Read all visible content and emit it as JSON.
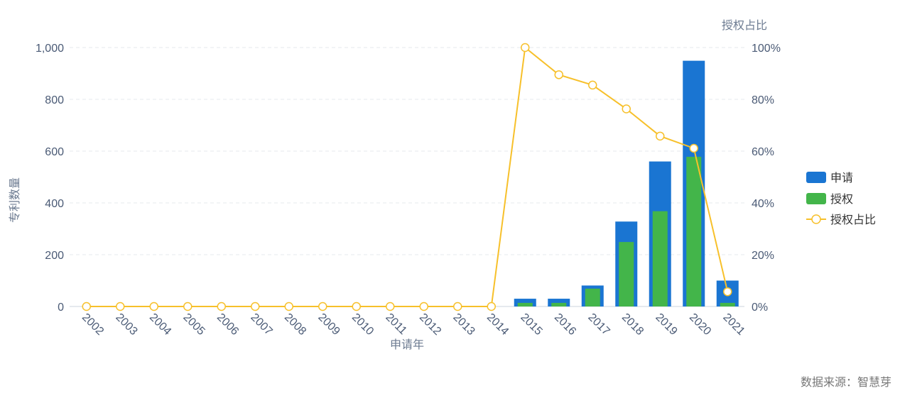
{
  "chart_data": {
    "type": "bar",
    "categories": [
      "2002",
      "2003",
      "2004",
      "2005",
      "2006",
      "2007",
      "2008",
      "2009",
      "2010",
      "2011",
      "2012",
      "2013",
      "2014",
      "2015",
      "2016",
      "2017",
      "2018",
      "2019",
      "2020",
      "2021"
    ],
    "series": [
      {
        "name": "申请",
        "type": "bar",
        "axis": "left",
        "color": "#1a75d2",
        "values": [
          0,
          0,
          0,
          0,
          0,
          0,
          0,
          0,
          0,
          0,
          0,
          0,
          0,
          30,
          30,
          81,
          328,
          560,
          949,
          100
        ]
      },
      {
        "name": "授权",
        "type": "bar",
        "axis": "left",
        "color": "#43b54a",
        "values": [
          0,
          0,
          0,
          0,
          0,
          0,
          0,
          0,
          0,
          0,
          0,
          0,
          0,
          14,
          14,
          69,
          249,
          368,
          578,
          14
        ]
      },
      {
        "name": "授权占比",
        "type": "line",
        "axis": "right",
        "color": "#f7c02a",
        "values": [
          0,
          0,
          0,
          0,
          0,
          0,
          0,
          0,
          0,
          0,
          0,
          0,
          0,
          100,
          89.5,
          85.5,
          76.3,
          65.8,
          61.1,
          5.7
        ]
      }
    ],
    "xlabel": "申请年",
    "ylabel": "专利数量",
    "y2label": "授权占比",
    "ylim": [
      0,
      1000
    ],
    "yticks": [
      "0",
      "200",
      "400",
      "600",
      "800",
      "1,000"
    ],
    "y2lim": [
      0,
      100
    ],
    "y2ticks": [
      "0%",
      "20%",
      "40%",
      "60%",
      "80%",
      "100%"
    ],
    "grid": true,
    "legend": "right"
  },
  "source": "数据来源：智慧芽"
}
